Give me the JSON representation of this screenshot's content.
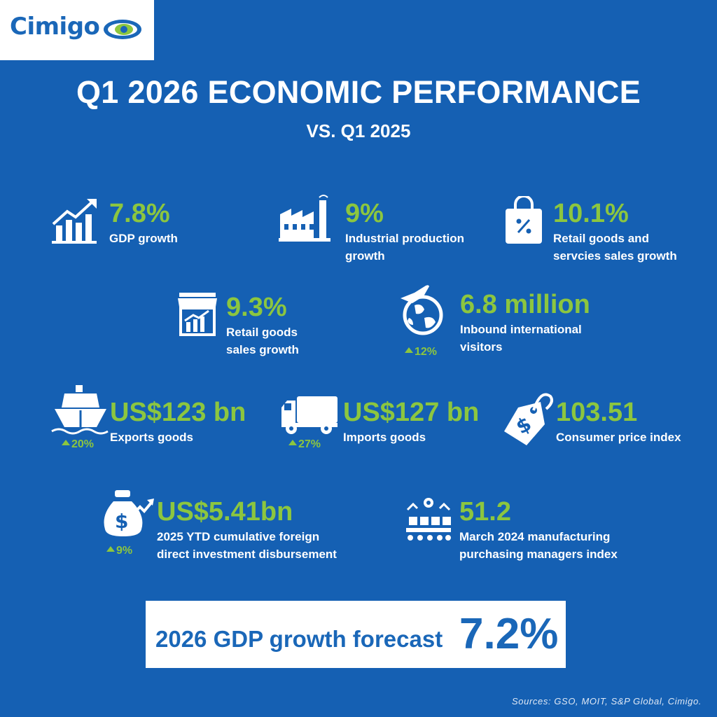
{
  "logo": {
    "text": "Cimigo",
    "icon": "eye-logo-icon"
  },
  "header": {
    "title": "Q1 2026 ECONOMIC PERFORMANCE",
    "subtitle": "VS. Q1 2025"
  },
  "stats": {
    "gdp": {
      "value": "7.8%",
      "label": "GDP growth",
      "icon": "growth-chart-icon"
    },
    "industrial": {
      "value": "9%",
      "label_line1": "Industrial production",
      "label_line2": "growth",
      "icon": "factory-icon"
    },
    "retail_services": {
      "value": "10.1%",
      "label_line1": "Retail goods and",
      "label_line2": "servcies sales growth",
      "icon": "shopping-bag-percent-icon"
    },
    "retail_goods": {
      "value": "9.3%",
      "label_line1": "Retail goods",
      "label_line2": "sales growth",
      "icon": "storefront-icon"
    },
    "visitors": {
      "value": "6.8 million",
      "label_line1": "Inbound international",
      "label_line2": "visitors",
      "badge": "12%",
      "icon": "globe-plane-icon"
    },
    "exports": {
      "value": "US$123 bn",
      "label": "Exports goods",
      "badge": "20%",
      "icon": "ship-icon"
    },
    "imports": {
      "value": "US$127 bn",
      "label": "Imports goods",
      "badge": "27%",
      "icon": "truck-icon"
    },
    "cpi": {
      "value": "103.51",
      "label": "Consumer price index",
      "icon": "price-tag-icon"
    },
    "fdi": {
      "value": "US$5.41bn",
      "label_line1": "2025 YTD cumulative foreign",
      "label_line2": "direct investment disbursement",
      "badge": "9%",
      "icon": "money-bag-icon"
    },
    "pmi": {
      "value": "51.2",
      "label_line1": "March 2024 manufacturing",
      "label_line2": "purchasing managers index",
      "icon": "manufacturing-conveyor-icon"
    }
  },
  "forecast": {
    "label": "2026 GDP growth forecast",
    "value": "7.2%"
  },
  "footer": {
    "sources": "Sources: GSO, MOIT, S&P Global, Cimigo."
  },
  "colors": {
    "background": "#1560b3",
    "accent": "#8cc63f",
    "text": "#ffffff",
    "brand": "#1a67b8"
  }
}
